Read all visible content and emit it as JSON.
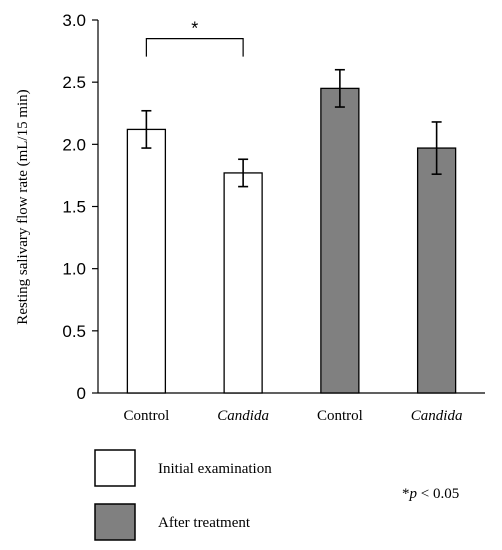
{
  "chart_data": {
    "type": "bar",
    "title": "",
    "ylabel": "Resting salivary flow rate (mL/15 min)",
    "xlabel": "",
    "ylim": [
      0,
      3.0
    ],
    "yticks": [
      "0",
      "0.5",
      "1.0",
      "1.5",
      "2.0",
      "2.5",
      "3.0"
    ],
    "grid": false,
    "categories": [
      {
        "label": "Control",
        "italic": false
      },
      {
        "label": "Candida",
        "italic": true
      },
      {
        "label": "Control",
        "italic": false
      },
      {
        "label": "Candida",
        "italic": true
      }
    ],
    "bars": [
      {
        "category_index": 0,
        "series": "Initial examination",
        "value": 2.12,
        "error": 0.15
      },
      {
        "category_index": 1,
        "series": "Initial examination",
        "value": 1.77,
        "error": 0.11
      },
      {
        "category_index": 2,
        "series": "After treatment",
        "value": 2.45,
        "error": 0.15
      },
      {
        "category_index": 3,
        "series": "After treatment",
        "value": 1.97,
        "error": 0.21
      }
    ],
    "series": [
      {
        "name": "Initial examination",
        "color": "#ffffff"
      },
      {
        "name": "After treatment",
        "color": "#808080"
      }
    ],
    "significance": {
      "from_index": 0,
      "to_index": 1,
      "marker": "*",
      "bracket_value": 2.85
    },
    "legend_placement": "bottom-left",
    "annotation_p": "p",
    "annotation_prefix": "*",
    "annotation_value": " < 0.05"
  }
}
